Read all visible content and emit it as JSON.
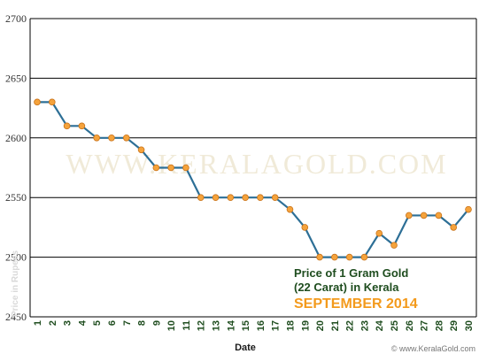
{
  "chart_data": {
    "type": "line",
    "title": "Price of 1 Gram Gold",
    "subtitle": "(22 Carat) in Kerala",
    "period": "SEPTEMBER 2014",
    "xlabel": "Date",
    "ylabel": "Price in Rupees",
    "watermark": "WWW.KERALAGOLD.COM",
    "site": "© www.KeralaGold.com",
    "ylim": [
      2450,
      2700
    ],
    "yticks": [
      2450,
      2500,
      2550,
      2600,
      2650,
      2700
    ],
    "x": [
      1,
      2,
      3,
      4,
      5,
      6,
      7,
      8,
      9,
      10,
      11,
      12,
      13,
      14,
      15,
      16,
      17,
      18,
      19,
      20,
      21,
      22,
      23,
      24,
      25,
      26,
      27,
      28,
      29,
      30
    ],
    "series": [
      {
        "values": [
          2630,
          2630,
          2610,
          2610,
          2600,
          2600,
          2600,
          2590,
          2575,
          2575,
          2575,
          2550,
          2550,
          2550,
          2550,
          2550,
          2550,
          2540,
          2525,
          2500,
          2500,
          2500,
          2500,
          2520,
          2510,
          2535,
          2535,
          2535,
          2525,
          2540
        ]
      }
    ],
    "grid": true,
    "colors": {
      "line": "#2d6f96",
      "point": "#f5a33c",
      "grid": "#000000",
      "caption": "#1f4d1f",
      "month": "#f39a1c"
    }
  }
}
